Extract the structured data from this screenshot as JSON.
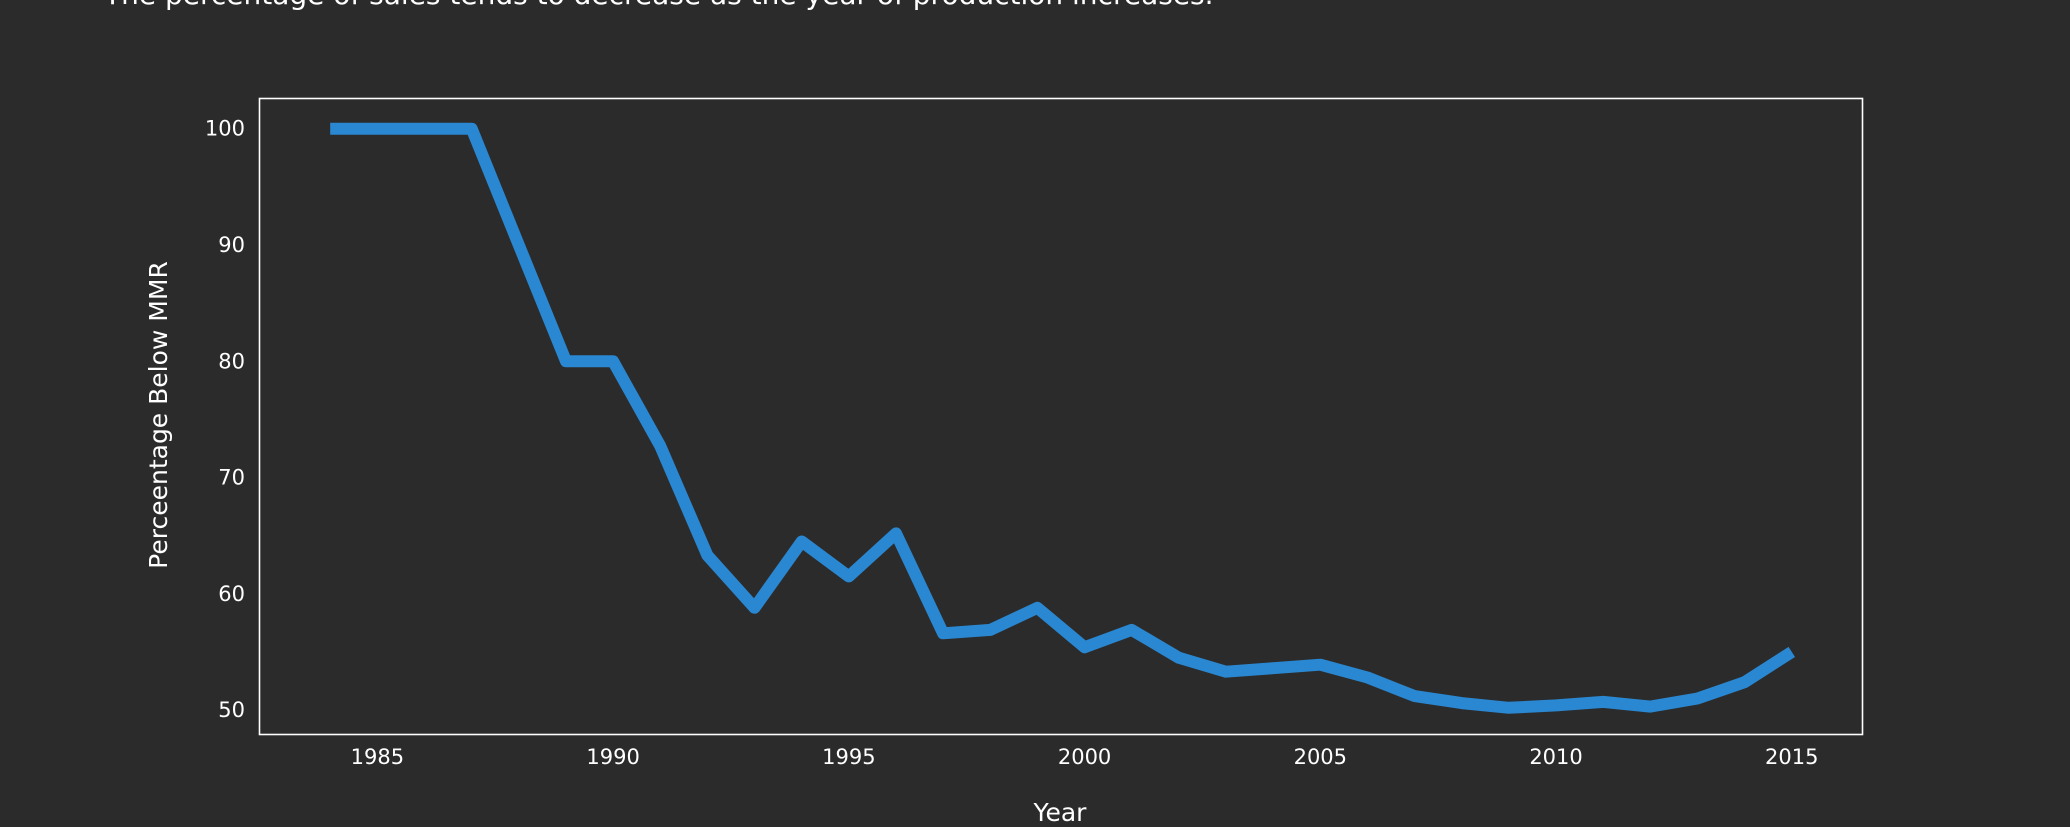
{
  "title": "The percentage of sales tends to decrease as the year of production increases.",
  "colors": {
    "background": "#2b2b2b",
    "line": "#2a87d1",
    "frame": "#ffffff",
    "text": "#ffffff"
  },
  "chart_data": {
    "type": "line",
    "title": "The percentage of sales tends to decrease as the year of production increases.",
    "xlabel": "Year",
    "ylabel": "Perceentage Below MMR",
    "xlim": [
      1982.5,
      2016.5
    ],
    "ylim": [
      47.9,
      102.6
    ],
    "xticks": [
      1985,
      1990,
      1995,
      2000,
      2005,
      2010,
      2015
    ],
    "yticks": [
      50,
      60,
      70,
      80,
      90,
      100
    ],
    "grid": false,
    "series": [
      {
        "x": [
          1984,
          1985,
          1986,
          1987,
          1988,
          1989,
          1990,
          1991,
          1992,
          1993,
          1994,
          1995,
          1996,
          1997,
          1998,
          1999,
          2000,
          2001,
          2002,
          2003,
          2004,
          2005,
          2006,
          2007,
          2008,
          2009,
          2010,
          2011,
          2012,
          2013,
          2014,
          2015
        ],
        "y": [
          100,
          100,
          100,
          100,
          90,
          80,
          80,
          72.7,
          63.3,
          58.8,
          64.5,
          61.5,
          65.2,
          56.6,
          56.9,
          58.8,
          55.4,
          56.9,
          54.5,
          53.3,
          53.6,
          53.9,
          52.8,
          51.2,
          50.6,
          50.2,
          50.4,
          50.7,
          50.3,
          51.0,
          52.4,
          55.0
        ]
      }
    ]
  }
}
